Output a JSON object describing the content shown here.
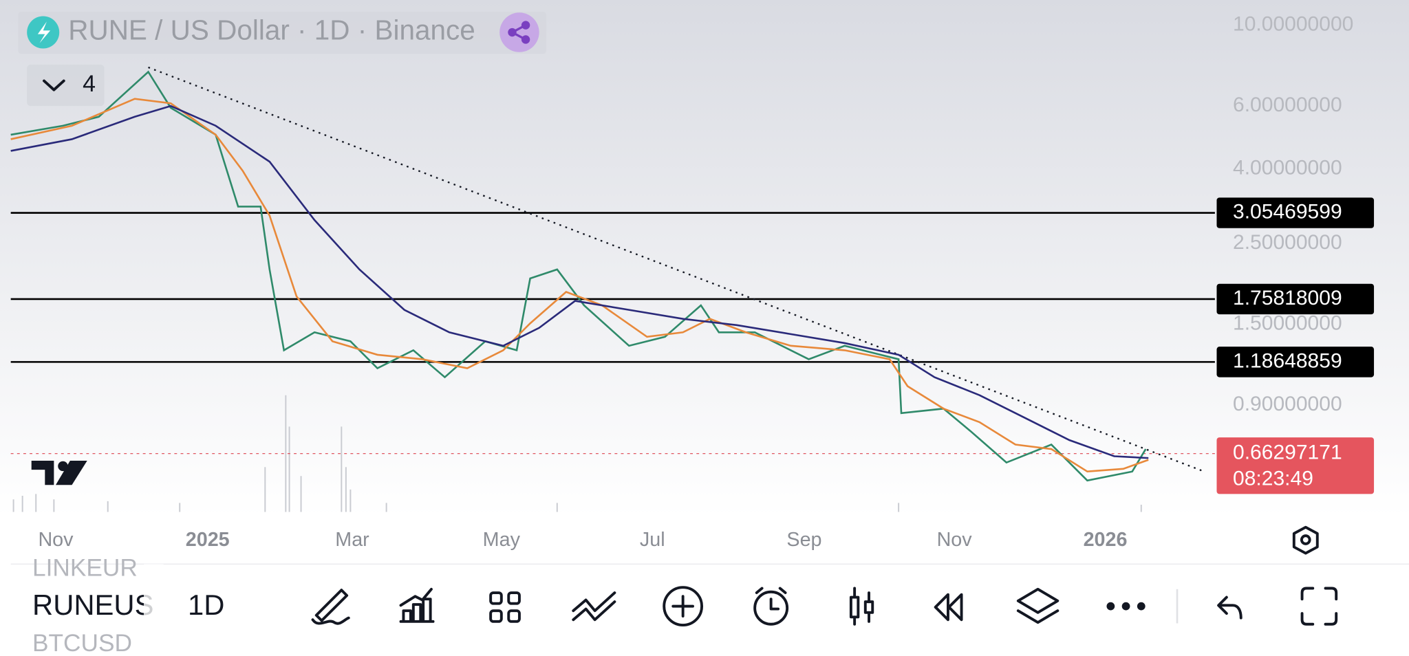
{
  "header": {
    "title": "RUNE / US Dollar · 1D · Binance",
    "indicator_count": "4"
  },
  "price_axis": {
    "labels": [
      "10.00000000",
      "6.00000000",
      "4.00000000",
      "2.50000000",
      "1.50000000",
      "0.90000000"
    ]
  },
  "price_lines": [
    "3.05469599",
    "1.75818009",
    "1.18648859"
  ],
  "current_price": {
    "price": "0.66297171",
    "countdown": "08:23:49"
  },
  "time_axis": {
    "labels": [
      "Nov",
      "2025",
      "Mar",
      "May",
      "Jul",
      "Sep",
      "Nov",
      "2026"
    ]
  },
  "toolbar": {
    "symbol_above": "LINKEUR",
    "symbol": "RUNEUS",
    "symbol_below": "BTCUSD",
    "interval": "1D"
  }
}
